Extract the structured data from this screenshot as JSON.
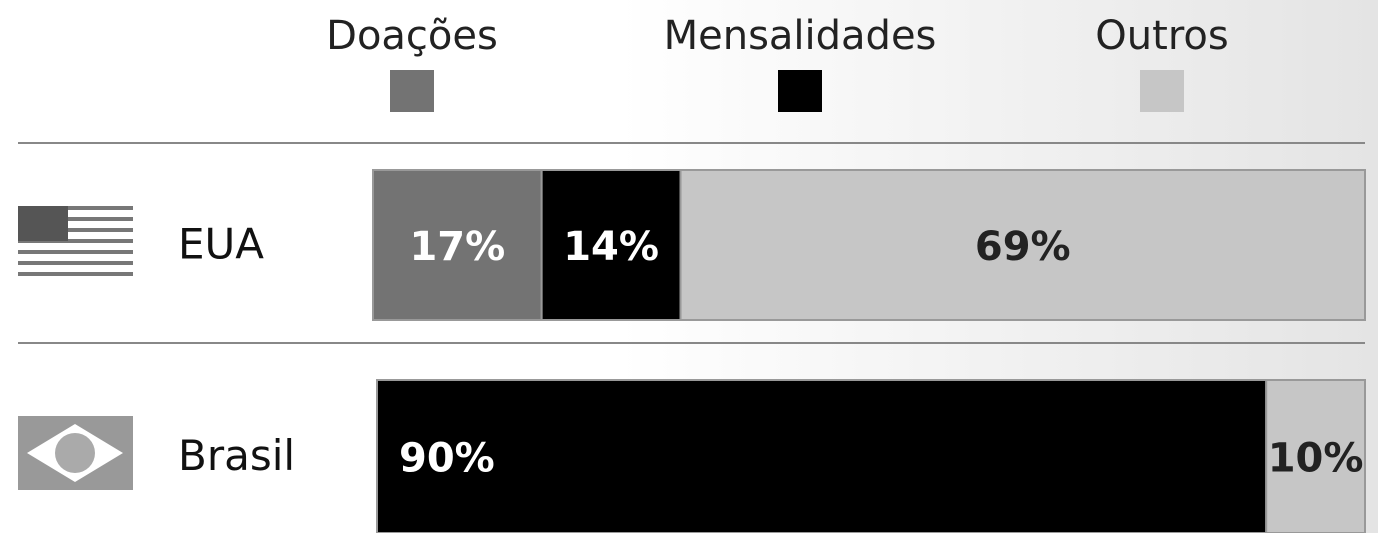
{
  "chart_data": {
    "type": "stacked-bar-horizontal",
    "categories": [
      "EUA",
      "Brasil"
    ],
    "series": [
      {
        "name": "Doações",
        "color": "#737373",
        "values": [
          17,
          null
        ],
        "value_labels": [
          "17%",
          null
        ]
      },
      {
        "name": "Mensalidades",
        "color": "#000000",
        "values": [
          14,
          90
        ],
        "value_labels": [
          "14%",
          "90%"
        ]
      },
      {
        "name": "Outros",
        "color": "#c6c6c6",
        "values": [
          69,
          10
        ],
        "value_labels": [
          "69%",
          "10%"
        ]
      }
    ],
    "xlim": [
      0,
      100
    ]
  }
}
